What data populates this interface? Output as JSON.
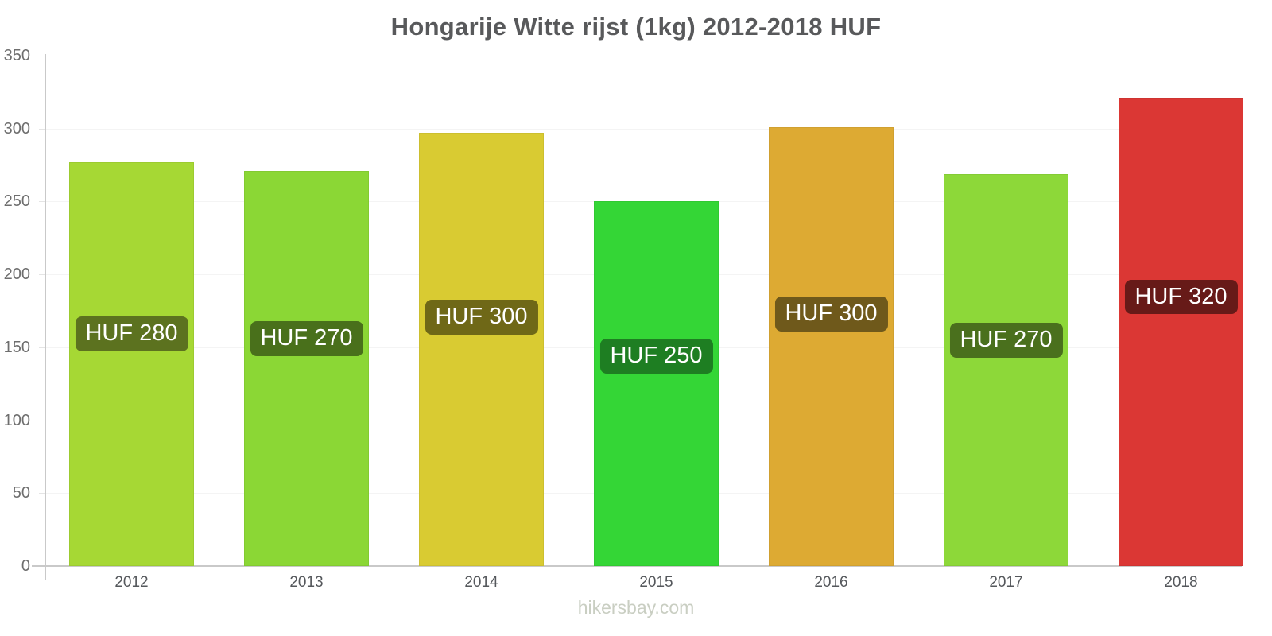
{
  "title": "Hongarije Witte rijst (1kg) 2012-2018 HUF",
  "footer": {
    "text": "hikersbay.com"
  },
  "chart_data": {
    "type": "bar",
    "title": "Hongarije Witte rijst (1kg) 2012-2018 HUF",
    "categories": [
      "2012",
      "2013",
      "2014",
      "2015",
      "2016",
      "2017",
      "2018"
    ],
    "values": [
      277,
      271,
      297,
      250,
      301,
      269,
      321
    ],
    "bar_labels": [
      "HUF 280",
      "HUF 270",
      "HUF 300",
      "HUF 250",
      "HUF 300",
      "HUF 270",
      "HUF 320"
    ],
    "bar_colors": [
      "#A6D834",
      "#8BD735",
      "#D9CB32",
      "#34D636",
      "#DDAA33",
      "#8DD839",
      "#DB3734"
    ],
    "label_bg_colors": [
      "#5C721F",
      "#49701B",
      "#6F6817",
      "#1E7E22",
      "#6F591B",
      "#4A701D",
      "#671A18"
    ],
    "label_text_color": "#FFFFFF",
    "xlabel": "",
    "ylabel": "",
    "ylim": [
      0,
      350
    ],
    "yticks": [
      0,
      50,
      100,
      150,
      200,
      250,
      300,
      350
    ],
    "grid": true,
    "legend": false,
    "axis_color": "#C9C9C9",
    "gridline_color": "#F4F4F4",
    "tick_label_color": "#6E6E6E",
    "x_label_color": "#55585C",
    "title_color": "#58595B",
    "watermark_color": "#C9CEC2",
    "currency": "HUF"
  }
}
